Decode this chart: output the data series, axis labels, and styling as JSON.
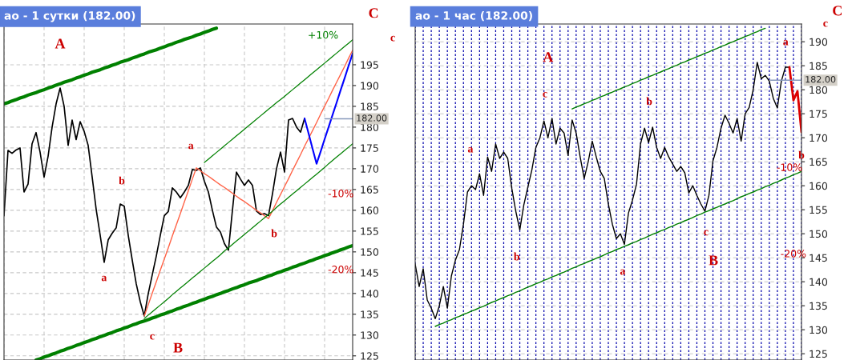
{
  "chart_data": [
    {
      "type": "line",
      "title": "ао - 1 сутки (182.00)",
      "categories": [
        null,
        null,
        null,
        null,
        null,
        null,
        null,
        null,
        null,
        null,
        null,
        null,
        null,
        null,
        null,
        null,
        null,
        null,
        null,
        null,
        null,
        null,
        null,
        null,
        null,
        null,
        null,
        null,
        null,
        null,
        null,
        null,
        null,
        null,
        null,
        null,
        null,
        null,
        null,
        null,
        null,
        null,
        null,
        null,
        null,
        null,
        null,
        null,
        null,
        null,
        null,
        null,
        null,
        null,
        null,
        null,
        null,
        null,
        null,
        null,
        null,
        null,
        null,
        null,
        null,
        null,
        null,
        null,
        null,
        null,
        null,
        null,
        null,
        null,
        null,
        null,
        null,
        null,
        null,
        null,
        null,
        null,
        null,
        null,
        null,
        null,
        null,
        null
      ],
      "series": [
        {
          "color": "#000000",
          "values": [
            158.7,
            174.4,
            173.7,
            174.5,
            175,
            164.4,
            166.3,
            176,
            178.7,
            174,
            168,
            173,
            180,
            185.6,
            189.4,
            185,
            175.6,
            181.7,
            177,
            181.3,
            179,
            175.6,
            168,
            160.2,
            154,
            147.5,
            152.9,
            154.5,
            155.8,
            161.5,
            161,
            154,
            148,
            142.3,
            138,
            134.6,
            140,
            144.5,
            149,
            154,
            158.7,
            159.7,
            165.4,
            164.4,
            163,
            164.4,
            166,
            169.8,
            169.6,
            170.2,
            167,
            164.4,
            160,
            156,
            154.8,
            152,
            150.4,
            160,
            169.2,
            167.5,
            166,
            167.3,
            166,
            159.8,
            159,
            159.2,
            158.7,
            164,
            170,
            174,
            169.2,
            181.7,
            182.1,
            180,
            178.8,
            182.1,
            null,
            null,
            null,
            null,
            null,
            null,
            null,
            null,
            null,
            null,
            null,
            null
          ]
        },
        {
          "color": "#ff6347",
          "values": [
            null,
            null,
            null,
            null,
            null,
            null,
            null,
            null,
            null,
            null,
            null,
            null,
            null,
            null,
            null,
            null,
            null,
            null,
            null,
            null,
            null,
            null,
            null,
            null,
            null,
            null,
            null,
            null,
            null,
            null,
            null,
            null,
            null,
            null,
            null,
            134.6,
            137.3,
            140.1,
            142.8,
            145.6,
            148.3,
            151.0,
            153.8,
            156.5,
            159.2,
            162.0,
            164.7,
            167.5,
            170.2,
            169.5,
            168.8,
            168.2,
            167.5,
            166.8,
            166.1,
            165.5,
            164.8,
            164.1,
            163.4,
            162.7,
            162.1,
            161.4,
            160.7,
            160.0,
            159.4,
            158.7,
            158,
            159.9,
            161.9,
            163.8,
            165.7,
            167.6,
            169.6,
            171.5,
            173.4,
            175.4,
            177.3,
            179.2,
            181.1,
            183.1,
            185,
            186.9,
            188.9,
            190.8,
            192.7,
            194.6,
            196.6,
            198.5
          ]
        },
        {
          "color": "#0000ff",
          "values": [
            null,
            null,
            null,
            null,
            null,
            null,
            null,
            null,
            null,
            null,
            null,
            null,
            null,
            null,
            null,
            null,
            null,
            null,
            null,
            null,
            null,
            null,
            null,
            null,
            null,
            null,
            null,
            null,
            null,
            null,
            null,
            null,
            null,
            null,
            null,
            null,
            null,
            null,
            null,
            null,
            null,
            null,
            null,
            null,
            null,
            null,
            null,
            null,
            null,
            null,
            null,
            null,
            null,
            null,
            null,
            null,
            null,
            null,
            null,
            null,
            null,
            null,
            null,
            null,
            null,
            null,
            null,
            null,
            null,
            null,
            null,
            null,
            null,
            null,
            null,
            182.1,
            178.5,
            174.8,
            171.2,
            174.1,
            177.1,
            180.0,
            183.0,
            185.9,
            188.9,
            191.8,
            194.8,
            197.7
          ]
        },
        {
          "color": "#008000",
          "values": [
            185.6,
            185.9,
            186.3,
            186.6,
            187.0,
            187.3,
            187.7,
            188.0,
            188.3,
            188.7,
            189.0,
            189.4,
            189.7,
            190.1,
            190.4,
            190.8,
            191.1,
            191.4,
            191.8,
            192.1,
            192.5,
            192.8,
            193.2,
            193.5,
            193.8,
            194.2,
            194.5,
            194.9,
            195.2,
            195.6,
            195.9,
            196.2,
            196.6,
            196.9,
            197.3,
            197.6,
            198.0,
            198.3,
            198.6,
            199.0,
            199.3,
            199.7,
            200.0,
            200.4,
            200.7,
            201.1,
            201.4,
            201.7,
            202.1,
            202.4,
            202.8,
            203.1,
            203.5,
            203.8,
            null,
            null,
            null,
            null,
            null,
            null,
            null,
            null,
            null,
            null,
            null,
            null,
            null,
            null,
            null,
            null,
            null,
            null,
            null,
            null,
            null,
            null,
            null,
            null,
            null,
            null,
            null,
            null,
            null,
            null,
            null,
            null,
            null,
            null
          ]
        },
        {
          "color": "#008000",
          "values": [
            null,
            null,
            null,
            null,
            null,
            null,
            null,
            null,
            124,
            124.3,
            124.7,
            125.0,
            125.4,
            125.7,
            126.1,
            126.4,
            126.8,
            127.1,
            127.5,
            127.8,
            128.2,
            128.5,
            128.9,
            129.2,
            129.6,
            129.9,
            130.3,
            130.6,
            131.0,
            131.3,
            131.7,
            132.0,
            132.4,
            132.7,
            133.1,
            133.4,
            133.7,
            134.1,
            134.4,
            134.8,
            135.1,
            135.5,
            135.8,
            136.2,
            136.5,
            136.9,
            137.2,
            137.6,
            137.9,
            138.3,
            138.6,
            139.0,
            139.3,
            139.7,
            140.0,
            140.4,
            140.7,
            141.1,
            141.4,
            141.8,
            142.1,
            142.5,
            142.8,
            143.1,
            143.5,
            143.8,
            144.2,
            144.5,
            144.9,
            145.2,
            145.6,
            145.9,
            146.3,
            146.6,
            147.0,
            147.3,
            147.7,
            148.0,
            148.4,
            148.7,
            149.1,
            149.4,
            149.8,
            150.1,
            150.5,
            150.8,
            151.2,
            151.5
          ]
        },
        {
          "color": "#008000",
          "values": [
            null,
            null,
            null,
            null,
            null,
            null,
            null,
            null,
            null,
            null,
            null,
            null,
            null,
            null,
            null,
            null,
            null,
            null,
            null,
            null,
            null,
            null,
            null,
            null,
            null,
            null,
            null,
            null,
            null,
            null,
            null,
            null,
            null,
            null,
            null,
            134,
            134.8,
            135.6,
            136.4,
            137.2,
            138.0,
            138.8,
            139.7,
            140.5,
            141.3,
            142.1,
            142.9,
            143.7,
            144.5,
            145.3,
            146.1,
            146.9,
            147.7,
            148.5,
            149.3,
            150.2,
            151.0,
            151.8,
            152.6,
            153.4,
            154.2,
            155.0,
            155.8,
            156.6,
            157.4,
            158.2,
            159.0,
            159.8,
            160.7,
            161.5,
            162.3,
            163.1,
            163.9,
            164.7,
            165.5,
            166.3,
            167.1,
            167.9,
            168.7,
            169.5,
            170.3,
            171.2,
            172.0,
            172.8,
            173.6,
            174.4,
            175.2,
            176
          ]
        },
        {
          "color": "#008000",
          "values": [
            null,
            null,
            null,
            null,
            null,
            null,
            null,
            null,
            null,
            null,
            null,
            null,
            null,
            null,
            null,
            null,
            null,
            null,
            null,
            null,
            null,
            null,
            null,
            null,
            null,
            null,
            null,
            null,
            null,
            null,
            null,
            null,
            null,
            null,
            null,
            null,
            null,
            null,
            null,
            null,
            null,
            null,
            null,
            null,
            null,
            null,
            null,
            null,
            null,
            null,
            171.5,
            172.3,
            173.1,
            173.9,
            174.7,
            175.5,
            176.3,
            177.1,
            177.9,
            178.7,
            179.5,
            180.3,
            181.1,
            181.9,
            182.7,
            183.5,
            184.3,
            185.1,
            185.9,
            186.6,
            187.4,
            188.2,
            189.0,
            189.8,
            190.6,
            191.4,
            192.2,
            193.0,
            193.8,
            194.6,
            195.4,
            196.2,
            197.0,
            197.8,
            198.6,
            199.4,
            200.2,
            201
          ]
        }
      ],
      "ylim": [
        124,
        204.8
      ],
      "yticks": [
        125,
        130,
        135,
        140,
        145,
        150,
        155,
        160,
        165,
        170,
        175,
        180,
        185,
        190,
        195
      ],
      "ref_lines": [
        {
          "axis": "y",
          "value": 182,
          "label": "182.00",
          "color": "#8899bb"
        }
      ],
      "annotations": [
        "A",
        "a",
        "b",
        "a",
        "c",
        "B",
        "b",
        "C",
        "c",
        "+10%",
        "-10%",
        "-20%"
      ],
      "grid": true,
      "legend": false,
      "tick_labels": "y",
      "line_style": "solid",
      "marker": "none"
    },
    {
      "type": "line",
      "title": "ао - 1 час (182.00)",
      "categories": [
        null,
        null,
        null,
        null,
        null,
        null,
        null,
        null,
        null,
        null,
        null,
        null,
        null,
        null,
        null,
        null,
        null,
        null,
        null,
        null,
        null,
        null,
        null,
        null,
        null,
        null,
        null,
        null,
        null,
        null,
        null,
        null,
        null,
        null,
        null,
        null,
        null,
        null,
        null,
        null,
        null,
        null,
        null,
        null,
        null,
        null,
        null,
        null,
        null,
        null,
        null,
        null,
        null,
        null,
        null,
        null,
        null,
        null,
        null,
        null,
        null,
        null,
        null,
        null,
        null,
        null,
        null,
        null,
        null,
        null,
        null,
        null,
        null,
        null,
        null,
        null,
        null,
        null,
        null,
        null,
        null,
        null,
        null,
        null,
        null,
        null,
        null,
        null,
        null,
        null,
        null,
        null,
        null,
        null,
        null,
        null,
        null
      ],
      "series": [
        {
          "color": "#000000",
          "values": [
            143.7,
            139,
            142.7,
            136.2,
            134.5,
            132.3,
            135,
            139,
            134.5,
            141.2,
            144.5,
            146.7,
            152,
            158.7,
            160,
            159.2,
            162.5,
            158,
            166,
            163,
            168.7,
            165.7,
            167,
            165.7,
            159.5,
            154.7,
            150.8,
            156,
            159.7,
            163.3,
            168,
            170,
            173.5,
            170,
            174,
            168.7,
            172,
            171,
            166.3,
            173.7,
            171,
            166,
            161.5,
            165,
            169.3,
            166,
            163,
            161.5,
            156.2,
            152,
            149,
            150,
            147.8,
            154.3,
            157,
            160.3,
            168.7,
            172,
            169,
            172.2,
            168,
            165.7,
            168,
            166,
            164.5,
            163,
            164,
            162.7,
            158.5,
            160,
            158,
            156.2,
            154.7,
            158,
            165.2,
            168,
            172,
            174.7,
            173,
            171,
            174,
            169.3,
            175,
            176.3,
            180,
            185.7,
            182.3,
            183,
            181.8,
            178.2,
            176.2,
            181.8,
            184.7,
            184.7,
            null,
            null,
            null
          ]
        },
        {
          "color": "#dd0000",
          "values": [
            null,
            null,
            null,
            null,
            null,
            null,
            null,
            null,
            null,
            null,
            null,
            null,
            null,
            null,
            null,
            null,
            null,
            null,
            null,
            null,
            null,
            null,
            null,
            null,
            null,
            null,
            null,
            null,
            null,
            null,
            null,
            null,
            null,
            null,
            null,
            null,
            null,
            null,
            null,
            null,
            null,
            null,
            null,
            null,
            null,
            null,
            null,
            null,
            null,
            null,
            null,
            null,
            null,
            null,
            null,
            null,
            null,
            null,
            null,
            null,
            null,
            null,
            null,
            null,
            null,
            null,
            null,
            null,
            null,
            null,
            null,
            null,
            null,
            null,
            null,
            null,
            null,
            null,
            null,
            null,
            null,
            null,
            null,
            null,
            null,
            null,
            null,
            null,
            null,
            null,
            null,
            null,
            null,
            184.7,
            177.8,
            179.7,
            171.2
          ]
        },
        {
          "color": "#008000",
          "values": [
            null,
            null,
            null,
            null,
            null,
            130.7,
            131.1,
            131.4,
            131.8,
            132.1,
            132.5,
            132.8,
            133.2,
            133.5,
            133.9,
            134.2,
            134.6,
            134.9,
            135.3,
            135.7,
            136.0,
            136.4,
            136.7,
            137.1,
            137.4,
            137.8,
            138.1,
            138.5,
            138.9,
            139.2,
            139.6,
            139.9,
            140.3,
            140.6,
            141.0,
            141.3,
            141.7,
            142.0,
            142.4,
            142.8,
            143.1,
            143.5,
            143.8,
            144.2,
            144.5,
            144.9,
            145.2,
            145.6,
            146.0,
            146.3,
            146.7,
            147.0,
            147.4,
            147.7,
            148.1,
            148.4,
            148.8,
            149.1,
            149.5,
            149.9,
            150.2,
            150.6,
            150.9,
            151.3,
            151.6,
            152.0,
            152.3,
            152.7,
            153.0,
            153.4,
            153.8,
            154.1,
            154.5,
            154.8,
            155.2,
            155.5,
            155.9,
            156.2,
            156.6,
            156.9,
            157.3,
            157.7,
            158.0,
            158.4,
            158.7,
            159.1,
            159.4,
            159.8,
            160.1,
            160.5,
            160.8,
            161.2,
            161.6,
            161.9,
            162.3,
            162.6,
            163
          ]
        },
        {
          "color": "#008000",
          "values": [
            null,
            null,
            null,
            null,
            null,
            null,
            null,
            null,
            null,
            null,
            null,
            null,
            null,
            null,
            null,
            null,
            null,
            null,
            null,
            null,
            null,
            null,
            null,
            null,
            null,
            null,
            null,
            null,
            null,
            null,
            null,
            null,
            null,
            null,
            null,
            null,
            null,
            null,
            null,
            176,
            176.4,
            176.7,
            177.1,
            177.4,
            177.8,
            178.1,
            178.5,
            178.8,
            179.2,
            179.5,
            179.9,
            180.2,
            180.6,
            180.9,
            181.3,
            181.6,
            182.0,
            182.3,
            182.7,
            183.0,
            183.4,
            183.7,
            184.1,
            184.4,
            184.8,
            185.1,
            185.5,
            185.8,
            186.2,
            186.5,
            186.9,
            187.2,
            187.6,
            187.9,
            188.3,
            188.6,
            189.0,
            189.3,
            189.7,
            190.0,
            190.4,
            190.7,
            191.1,
            191.4,
            191.8,
            192.1,
            192.5,
            192.8,
            null,
            null,
            null,
            null,
            null,
            null,
            null,
            null,
            null
          ]
        }
      ],
      "ylim": [
        123.7,
        193.7
      ],
      "yticks": [
        125,
        130,
        135,
        140,
        145,
        150,
        155,
        160,
        165,
        170,
        175,
        180,
        185,
        190
      ],
      "ref_lines": [
        {
          "axis": "y",
          "value": 182,
          "label": "182.00",
          "color": "#8899bb"
        }
      ],
      "annotations": [
        "A",
        "c",
        "a",
        "b",
        "a",
        "b",
        "C",
        "c",
        "b",
        "a",
        "c",
        "B",
        "-10%",
        "-20%"
      ],
      "grid": true,
      "legend": false,
      "tick_labels": "y",
      "line_style": "solid",
      "marker": "none"
    }
  ]
}
